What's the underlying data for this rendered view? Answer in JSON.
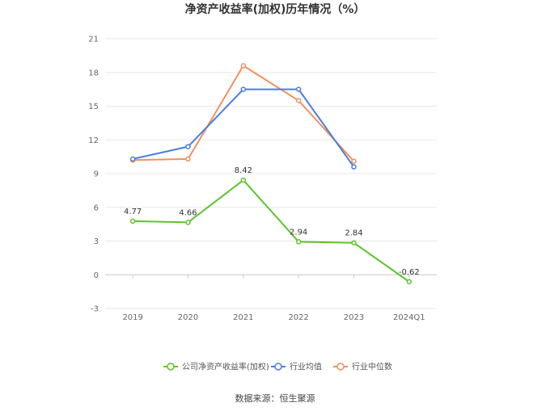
{
  "chart_data": {
    "type": "line",
    "title": "净资产收益率(加权)历年情况（%）",
    "categories": [
      "2019",
      "2020",
      "2021",
      "2022",
      "2023",
      "2024Q1"
    ],
    "ylim": [
      -3,
      21
    ],
    "yticks": [
      -3,
      0,
      3,
      6,
      9,
      12,
      15,
      18,
      21
    ],
    "grid": true,
    "legend_position": "bottom",
    "series": [
      {
        "name": "公司净资产收益率(加权)",
        "color": "#5cc42f",
        "values": [
          4.77,
          4.66,
          8.42,
          2.94,
          2.84,
          -0.62
        ],
        "labels": [
          "4.77",
          "4.66",
          "8.42",
          "2.94",
          "2.84",
          "-0.62"
        ]
      },
      {
        "name": "行业均值",
        "color": "#4a7ee0",
        "values": [
          10.3,
          11.4,
          16.5,
          16.5,
          9.6,
          null
        ]
      },
      {
        "name": "行业中位数",
        "color": "#f2905e",
        "values": [
          10.2,
          10.3,
          18.6,
          15.5,
          10.1,
          null
        ]
      }
    ],
    "source": "数据来源：恒生聚源"
  }
}
